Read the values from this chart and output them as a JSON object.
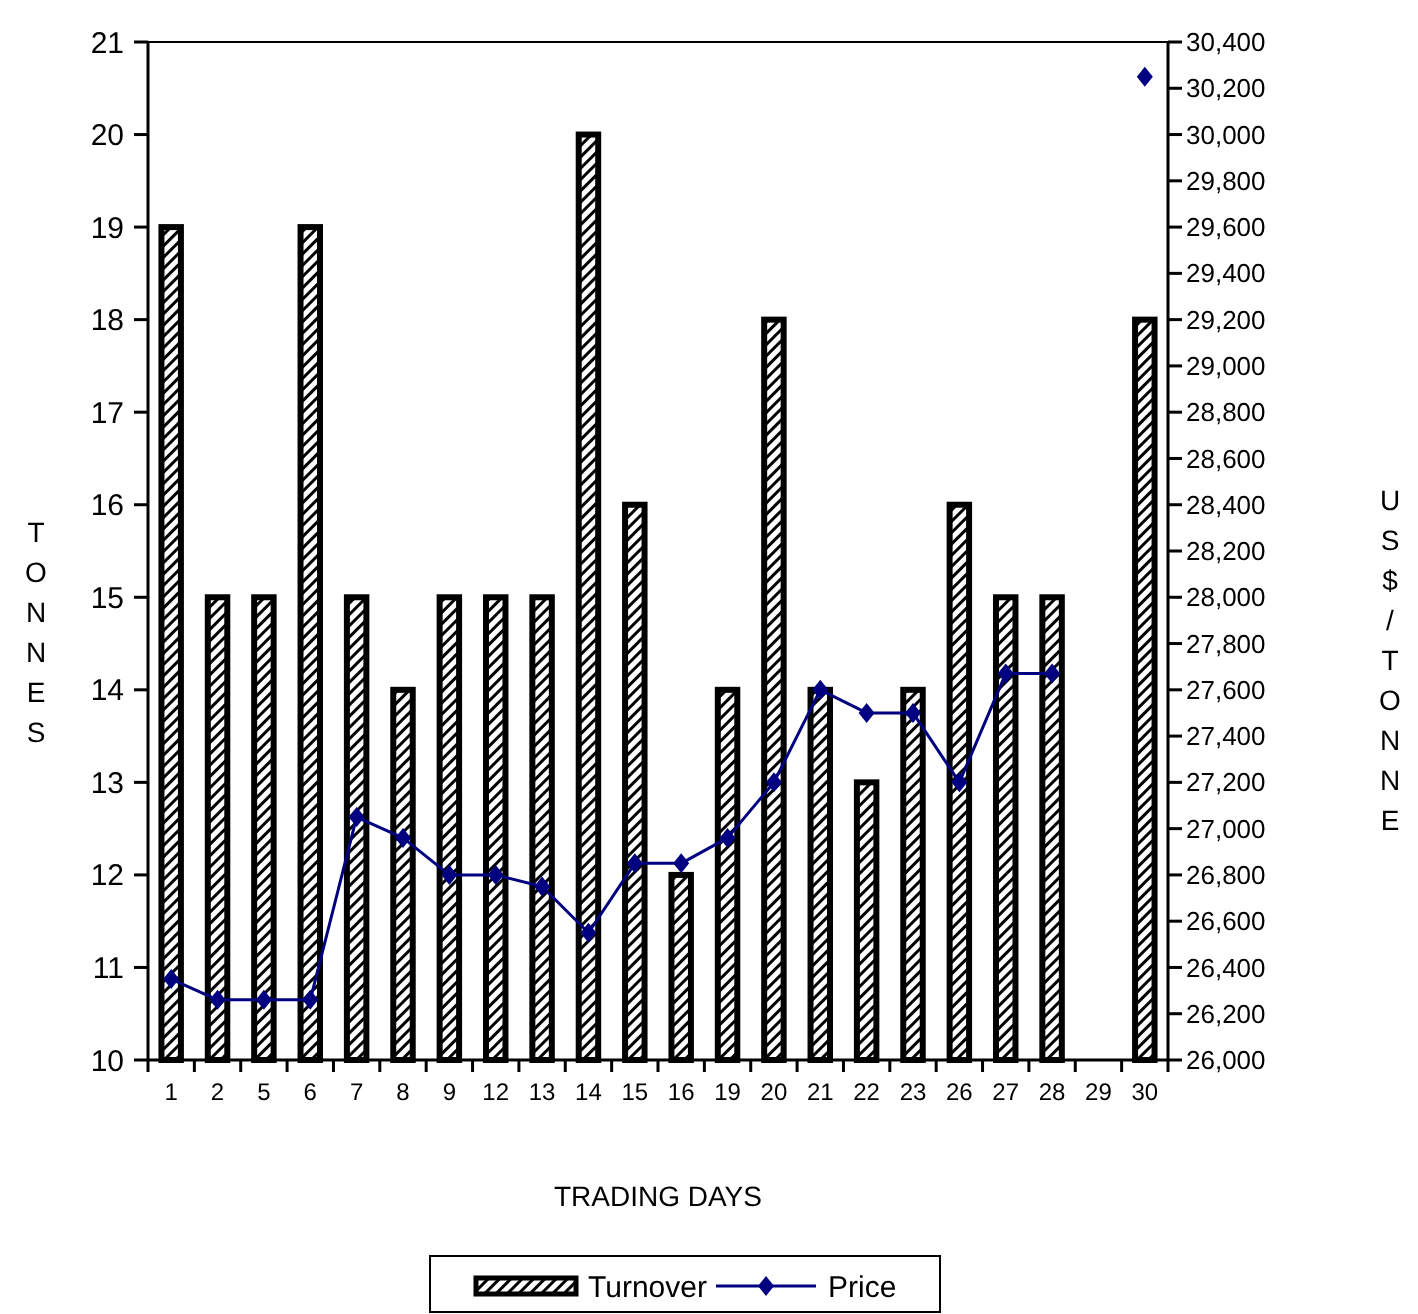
{
  "chart_data": {
    "type": "bar",
    "xlabel": "TRADING DAYS",
    "ylabel": "TONNES",
    "y2label": "US$/TONNE",
    "categories": [
      "1",
      "2",
      "5",
      "6",
      "7",
      "8",
      "9",
      "12",
      "13",
      "14",
      "15",
      "16",
      "19",
      "20",
      "21",
      "22",
      "23",
      "26",
      "27",
      "28",
      "29",
      "30"
    ],
    "series": [
      {
        "name": "Turnover",
        "color": "#000000",
        "values": [
          19,
          15,
          15,
          19,
          15,
          14,
          15,
          15,
          15,
          20,
          16,
          12,
          14,
          18,
          14,
          13,
          14,
          16,
          15,
          15,
          null,
          18
        ]
      },
      {
        "name": "Price",
        "type": "line",
        "axis": "y2",
        "color": "#000080",
        "marker": "diamond",
        "values": [
          26350,
          26260,
          26260,
          26260,
          27050,
          26960,
          26800,
          26800,
          26750,
          26550,
          26850,
          26850,
          26960,
          27200,
          27600,
          27500,
          27500,
          27200,
          27670,
          27670,
          null,
          30250
        ]
      }
    ],
    "ylim": [
      10,
      21
    ],
    "yticks": [
      10,
      11,
      12,
      13,
      14,
      15,
      16,
      17,
      18,
      19,
      20,
      21
    ],
    "y2lim": [
      26000,
      30400
    ],
    "y2ticks": [
      {
        "value": 26000,
        "label": "26,000"
      },
      {
        "value": 26200,
        "label": "26,200"
      },
      {
        "value": 26400,
        "label": "26,400"
      },
      {
        "value": 26600,
        "label": "26,600"
      },
      {
        "value": 26800,
        "label": "26,800"
      },
      {
        "value": 27000,
        "label": "27,000"
      },
      {
        "value": 27200,
        "label": "27,200"
      },
      {
        "value": 27400,
        "label": "27,400"
      },
      {
        "value": 27600,
        "label": "27,600"
      },
      {
        "value": 27800,
        "label": "27,800"
      },
      {
        "value": 28000,
        "label": "28,000"
      },
      {
        "value": 28200,
        "label": "28,200"
      },
      {
        "value": 28400,
        "label": "28,400"
      },
      {
        "value": 28600,
        "label": "28,600"
      },
      {
        "value": 28800,
        "label": "28,800"
      },
      {
        "value": 29000,
        "label": "29,000"
      },
      {
        "value": 29200,
        "label": "29,200"
      },
      {
        "value": 29400,
        "label": "29,400"
      },
      {
        "value": 29600,
        "label": "29,600"
      },
      {
        "value": 29800,
        "label": "29,800"
      },
      {
        "value": 30000,
        "label": "30,000"
      },
      {
        "value": 30200,
        "label": "30,200"
      },
      {
        "value": 30400,
        "label": "30,400"
      }
    ],
    "legend": "bottom",
    "grid": false
  }
}
